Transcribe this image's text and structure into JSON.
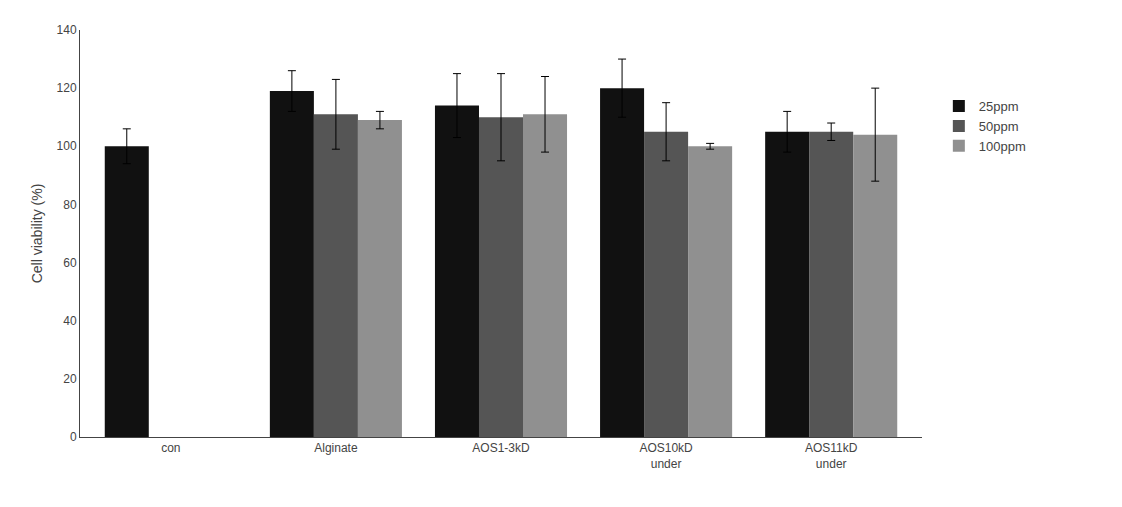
{
  "chart_data": {
    "type": "bar",
    "categories": [
      "con",
      "Alginate",
      "AOS1-3kD",
      "AOS10kD\nunder",
      "AOS11kD\nunder"
    ],
    "series": [
      {
        "name": "25ppm",
        "color": "#111111",
        "values": [
          100,
          119,
          114,
          120,
          105
        ],
        "errors": [
          6,
          7,
          11,
          10,
          7
        ]
      },
      {
        "name": "50ppm",
        "color": "#555555",
        "values": [
          null,
          111,
          110,
          105,
          105
        ],
        "errors": [
          null,
          12,
          15,
          10,
          3
        ]
      },
      {
        "name": "100ppm",
        "color": "#909090",
        "values": [
          null,
          109,
          111,
          100,
          104
        ],
        "errors": [
          null,
          3,
          13,
          1,
          16
        ]
      }
    ],
    "ylabel": "Cell viability (%)",
    "ylim": [
      0,
      140
    ],
    "yticks": [
      0,
      20,
      40,
      60,
      80,
      100,
      120,
      140
    ],
    "grid": false,
    "legend": "right"
  }
}
